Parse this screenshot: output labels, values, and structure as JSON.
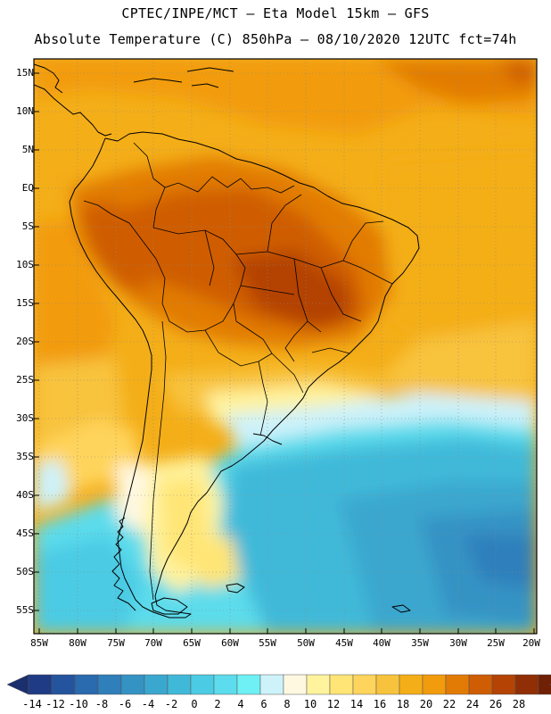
{
  "header": {
    "line1": "CPTEC/INPE/MCT –  Eta Model 15km – GFS",
    "line2": "Absolute Temperature (C) 850hPa – 08/10/2020 12UTC fct=74h"
  },
  "map": {
    "lat_labels": [
      "15N",
      "10N",
      "5N",
      "EQ",
      "5S",
      "10S",
      "15S",
      "20S",
      "25S",
      "30S",
      "35S",
      "40S",
      "45S",
      "50S",
      "55S"
    ],
    "lon_labels": [
      "85W",
      "80W",
      "75W",
      "70W",
      "65W",
      "60W",
      "55W",
      "50W",
      "45W",
      "40W",
      "35W",
      "30W",
      "25W",
      "20W"
    ]
  },
  "colorbar": {
    "labels": [
      "-14",
      "-12",
      "-10",
      "-8",
      "-6",
      "-4",
      "-2",
      "0",
      "2",
      "4",
      "6",
      "8",
      "10",
      "12",
      "14",
      "16",
      "18",
      "20",
      "22",
      "24",
      "26",
      "28"
    ],
    "colors": [
      "#1f3b85",
      "#24549d",
      "#2a6aae",
      "#2f7fbb",
      "#3593c4",
      "#3aa7cf",
      "#40b9d9",
      "#4ccbe4",
      "#5cdcec",
      "#6ef0f5",
      "#cdf2fa",
      "#fff8e1",
      "#fff39e",
      "#ffe576",
      "#ffd45c",
      "#f8c33c",
      "#f4ae18",
      "#f29b0c",
      "#e27b06",
      "#cf5d04",
      "#b44304",
      "#902e05",
      "#702005",
      "#5a1502"
    ],
    "low_color": "#1b2e6e",
    "high_color": "#8b0030"
  }
}
